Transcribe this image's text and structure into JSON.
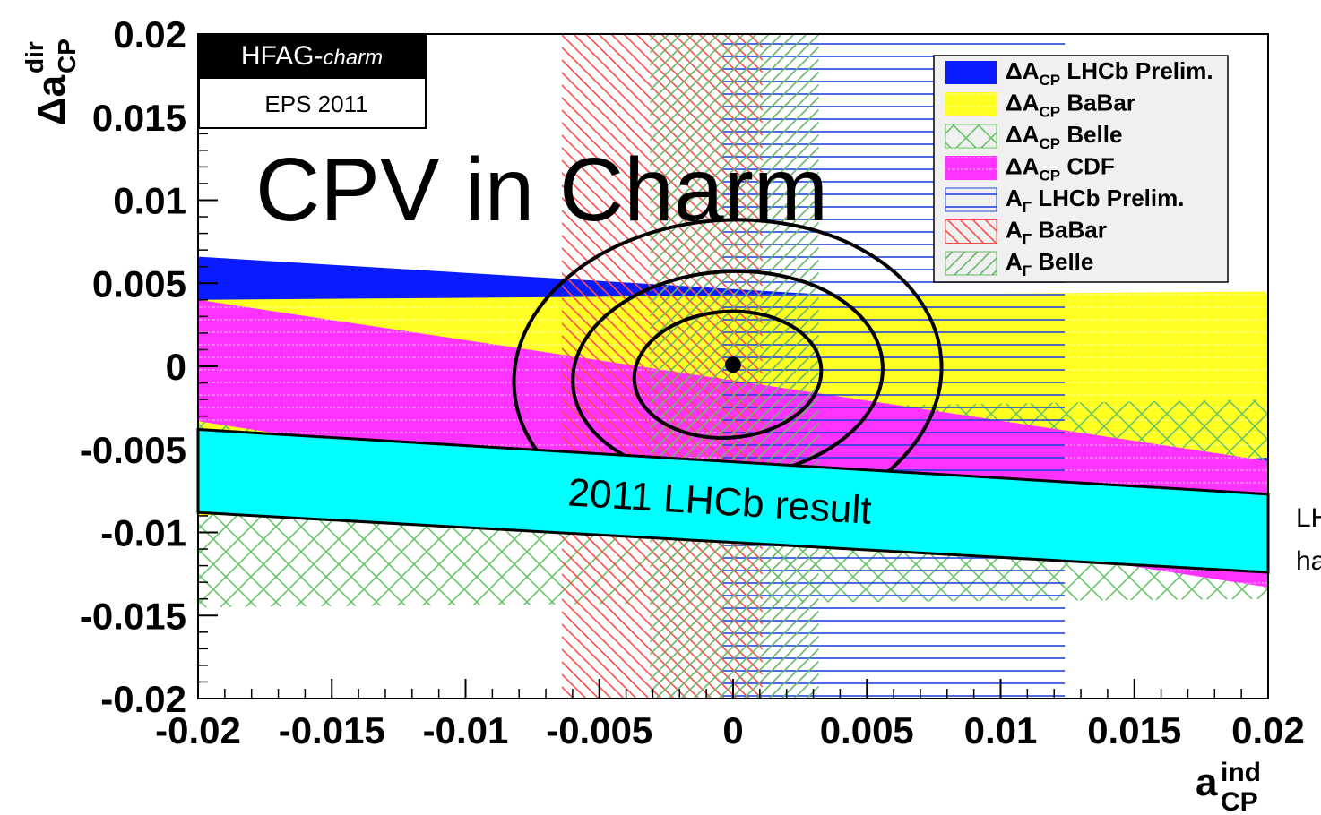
{
  "chart_data": {
    "type": "band",
    "banner": {
      "title": "HFAG-",
      "title_italic": "charm",
      "subtitle": "EPS 2011"
    },
    "overlay_title": "CPV in Charm",
    "xlabel": {
      "base": "a",
      "sup": "ind",
      "sub": "CP"
    },
    "ylabel": {
      "base": "Δa",
      "sup": "dir",
      "sub": "CP"
    },
    "xlim": [
      -0.02,
      0.02
    ],
    "ylim": [
      -0.02,
      0.02
    ],
    "xticks": [
      -0.02,
      -0.015,
      -0.01,
      -0.005,
      0,
      0.005,
      0.01,
      0.015,
      0.02
    ],
    "yticks": [
      -0.02,
      -0.015,
      -0.01,
      -0.005,
      0,
      0.005,
      0.01,
      0.015,
      0.02
    ],
    "legend": "top-right",
    "series": [
      {
        "name": "ΔACP LHCb Prelim.",
        "color": "#0a1cff",
        "style": "solid",
        "left": [
          -0.0074,
          0.0066
        ],
        "right": [
          -0.0113,
          0.0027
        ]
      },
      {
        "name": "ΔACP BaBar",
        "color": "#ffff22",
        "style": "dotted",
        "left": [
          -0.009,
          0.004
        ],
        "right": [
          -0.0055,
          0.0045
        ]
      },
      {
        "name": "ΔACP Belle",
        "color": "#66c466",
        "style": "crosshatch",
        "left": [
          -0.0145,
          -0.003
        ],
        "right": [
          -0.014,
          -0.002
        ]
      },
      {
        "name": "ΔACP CDF",
        "color": "#ff33ff",
        "style": "dotted",
        "left": [
          -0.0033,
          0.004
        ],
        "right": [
          -0.0133,
          -0.0057
        ]
      },
      {
        "name": "AΓ LHCb Prelim.",
        "color": "#2244dd",
        "style": "hlines",
        "xrange": [
          -0.0004,
          0.0124
        ]
      },
      {
        "name": "AΓ BaBar",
        "color": "#ff4a4a",
        "style": "hatch-back",
        "xrange": [
          -0.0064,
          0.0011
        ]
      },
      {
        "name": "AΓ Belle",
        "color": "#66b866",
        "style": "hatch-fwd",
        "xrange": [
          -0.0031,
          0.0032
        ]
      }
    ],
    "contours": {
      "center": [
        -0.0002,
        -0.0005
      ],
      "semi_axes": [
        [
          0.0035,
          0.0038
        ],
        [
          0.0058,
          0.0062
        ],
        [
          0.008,
          0.0093
        ]
      ]
    },
    "best_fit": [
      0,
      0.0001
    ],
    "result_band": {
      "label": "2011 LHCb result",
      "color": "#00ffff",
      "left": [
        -0.0088,
        -0.0038
      ],
      "right": [
        -0.0124,
        -0.0077
      ]
    },
    "side_text": [
      "LH",
      "ha"
    ]
  }
}
